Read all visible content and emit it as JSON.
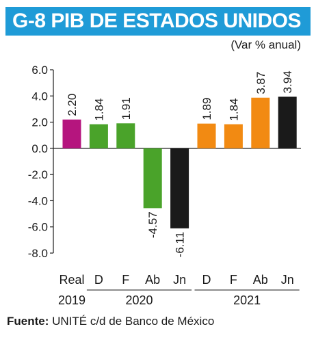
{
  "header": {
    "title": "G-8  PIB DE ESTADOS UNIDOS",
    "subtitle": "(Var % anual)"
  },
  "footer": {
    "source_label": "Fuente:",
    "source_text": " UNITÉ c/d de Banco de México"
  },
  "colors": {
    "title_bg": "#1f9bd7",
    "real": "#b5157e",
    "green": "#4aa32a",
    "orange": "#f28a12",
    "black": "#1a1a1a"
  },
  "chart_data": {
    "type": "bar",
    "title": "G-8  PIB DE ESTADOS UNIDOS",
    "subtitle": "(Var % anual)",
    "ylim": [
      -8,
      6
    ],
    "yticks": [
      "6.0",
      "4.0",
      "2.0",
      "0.0",
      "-2.0",
      "-4.0",
      "-6.0",
      "-8.0"
    ],
    "ytick_values": [
      6,
      4,
      2,
      0,
      -2,
      -4,
      -6,
      -8
    ],
    "grid": false,
    "categories": [
      "Real",
      "D",
      "F",
      "Ab",
      "Jn",
      "D",
      "F",
      "Ab",
      "Jn"
    ],
    "values": [
      2.2,
      1.84,
      1.91,
      -4.57,
      -6.11,
      1.89,
      1.84,
      3.87,
      3.94
    ],
    "value_labels": [
      "2.20",
      "1.84",
      "1.91",
      "-4.57",
      "-6.11",
      "1.89",
      "1.84",
      "3.87",
      "3.94"
    ],
    "bar_colors": [
      "real",
      "green",
      "green",
      "green",
      "black",
      "orange",
      "orange",
      "orange",
      "black"
    ],
    "groups": [
      {
        "label": "2019",
        "start": 0,
        "end": 0
      },
      {
        "label": "2020",
        "start": 1,
        "end": 4
      },
      {
        "label": "2021",
        "start": 5,
        "end": 8
      }
    ]
  }
}
